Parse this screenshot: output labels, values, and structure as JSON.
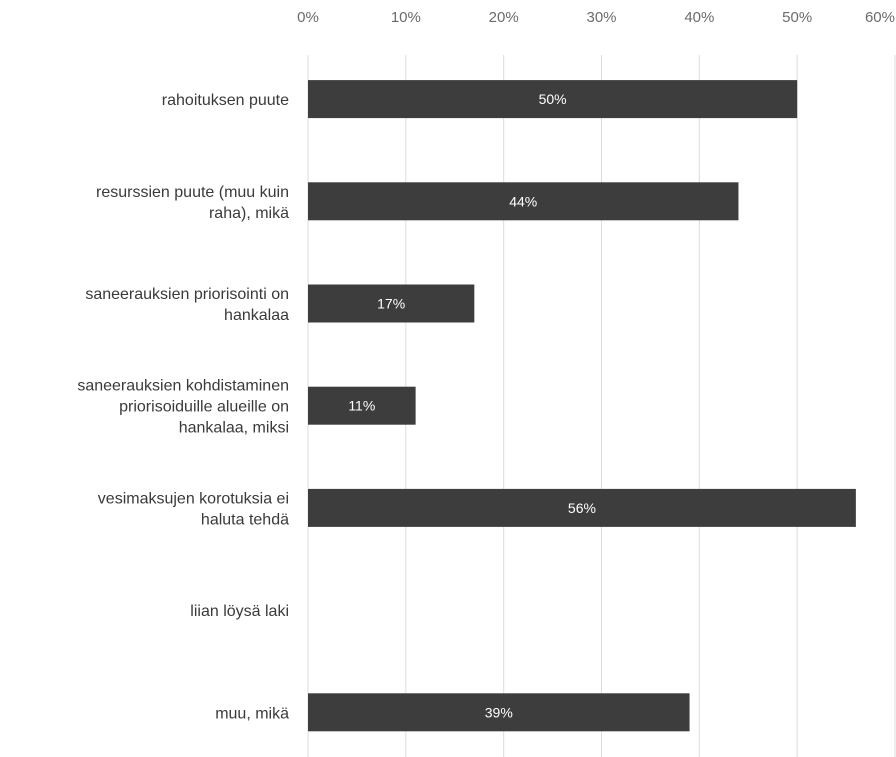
{
  "chart_data": {
    "type": "bar",
    "orientation": "horizontal",
    "title": "",
    "xlabel": "",
    "ylabel": "",
    "xlim": [
      0,
      60
    ],
    "ticks": [
      "0%",
      "10%",
      "20%",
      "30%",
      "40%",
      "50%",
      "60%"
    ],
    "grid": true,
    "categories": [
      [
        "rahoituksen puute"
      ],
      [
        "resurssien puute (muu kuin",
        "raha), mikä"
      ],
      [
        "saneerauksien priorisointi on",
        "hankalaa"
      ],
      [
        "saneerauksien kohdistaminen",
        "priorisoiduille alueille on",
        "hankalaa, miksi"
      ],
      [
        "vesimaksujen korotuksia ei",
        "haluta tehdä"
      ],
      [
        "liian löysä laki"
      ],
      [
        "muu, mikä"
      ]
    ],
    "values": [
      50,
      44,
      17,
      11,
      56,
      null,
      39
    ],
    "data_labels": [
      "50%",
      "44%",
      "17%",
      "11%",
      "56%",
      "",
      "39%"
    ],
    "bar_color": "#3d3d3d",
    "label_color": "#ffffff"
  }
}
